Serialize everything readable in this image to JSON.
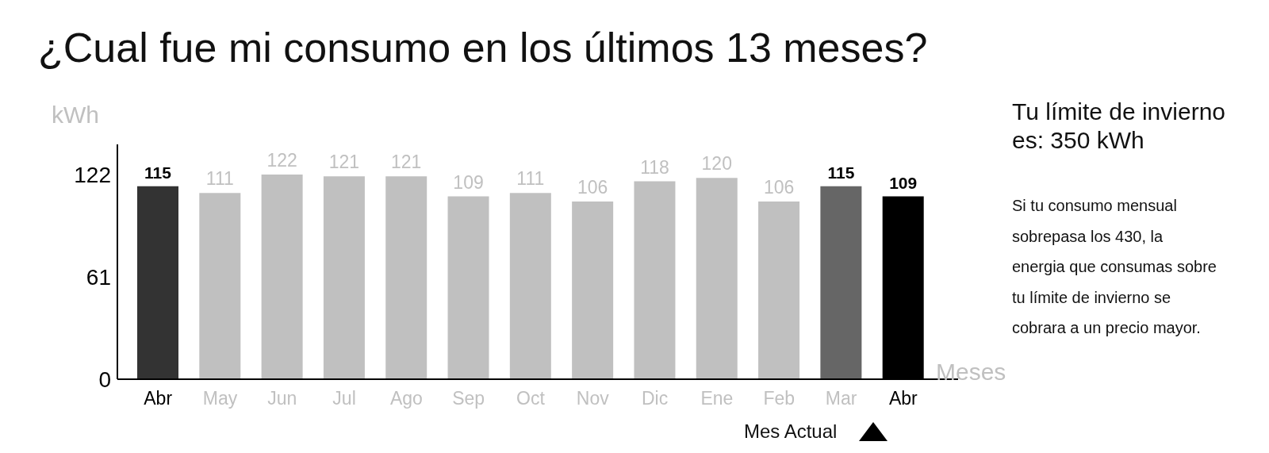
{
  "chart_data": {
    "type": "bar",
    "title": "¿Cual fue mi consumo en los últimos 13 meses?",
    "ylabel": "kWh",
    "xlabel": "Meses",
    "categories": [
      "Abr",
      "May",
      "Jun",
      "Jul",
      "Ago",
      "Sep",
      "Oct",
      "Nov",
      "Dic",
      "Ene",
      "Feb",
      "Mar",
      "Abr"
    ],
    "values": [
      115,
      111,
      122,
      121,
      121,
      109,
      111,
      106,
      118,
      120,
      106,
      115,
      109
    ],
    "colors": [
      "#333333",
      "#c0c0c0",
      "#c0c0c0",
      "#c0c0c0",
      "#c0c0c0",
      "#c0c0c0",
      "#c0c0c0",
      "#c0c0c0",
      "#c0c0c0",
      "#c0c0c0",
      "#c0c0c0",
      "#666666",
      "#000000"
    ],
    "ylim": [
      0,
      140
    ],
    "yticks": [
      0,
      61,
      122
    ],
    "data_labels": true,
    "grid": false,
    "legend": false,
    "annotations": [
      "Tu límite de invierno es: 350 kWh",
      "Si tu consumo mensual sobrepasa los 430, la energia que consumas sobre tu límite de invierno se cobrara a un precio mayor.",
      "Mes Actual"
    ]
  }
}
